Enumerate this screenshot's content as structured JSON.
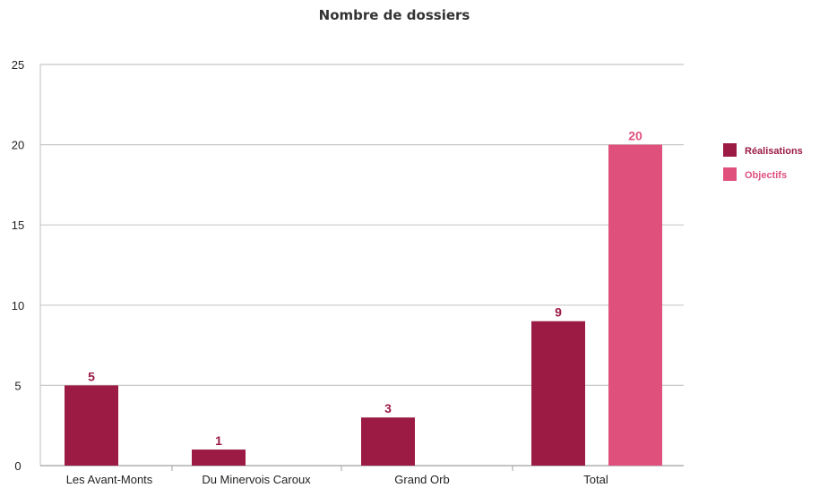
{
  "chart_data": {
    "type": "bar",
    "title": "Nombre de dossiers",
    "categories": [
      "Les Avant-Monts",
      "Du Minervois Caroux",
      "Grand Orb",
      "Total"
    ],
    "series": [
      {
        "name": "Réalisations",
        "values": [
          5,
          1,
          3,
          9
        ],
        "color": "#9b1b45"
      },
      {
        "name": "Objectifs",
        "values": [
          null,
          null,
          null,
          20
        ],
        "color": "#e0507d"
      }
    ],
    "yticks": [
      0,
      5,
      10,
      15,
      20,
      25
    ],
    "ylim": [
      0,
      25
    ],
    "xlabel": "",
    "ylabel": "",
    "grid": true,
    "legend_position": "right"
  }
}
